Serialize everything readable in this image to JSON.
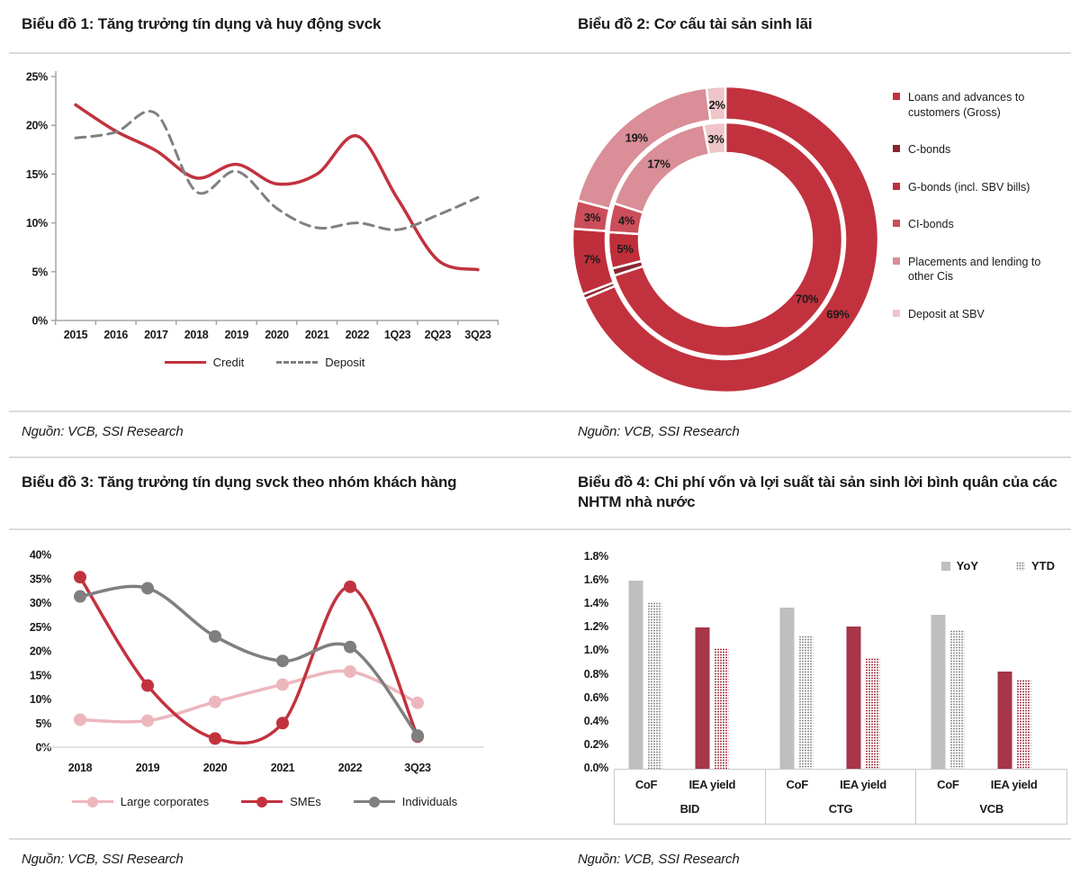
{
  "page": {
    "background": "#FFFFFF",
    "divider_color": "#DCDCDC",
    "accent_red": "#C2323E"
  },
  "panels": [
    {
      "title": "Biểu đồ 1: Tăng trưởng tín dụng và huy động svck",
      "source": "Nguồn: VCB, SSI Research"
    },
    {
      "title": "Biểu đồ 2: Cơ cấu tài sản sinh lãi",
      "source": "Nguồn: VCB, SSI Research"
    },
    {
      "title": "Biểu đồ 3: Tăng trưởng tín dụng svck theo nhóm khách hàng",
      "source": "Nguồn: VCB, SSI Research"
    },
    {
      "title": "Biểu đồ 4: Chi phí vốn và lợi suất tài sản sinh lời bình quân của các NHTM nhà nước",
      "source": "Nguồn: VCB, SSI Research"
    }
  ],
  "chart_data": [
    {
      "type": "line",
      "title": "Biểu đồ 1: Tăng trưởng tín dụng và huy động svck",
      "categories": [
        "2015",
        "2016",
        "2017",
        "2018",
        "2019",
        "2020",
        "2021",
        "2022",
        "1Q23",
        "2Q23",
        "3Q23"
      ],
      "ylim": [
        0,
        25
      ],
      "ytick_step": 5,
      "yformat": "%",
      "grid": false,
      "legend_position": "bottom",
      "series": [
        {
          "name": "Credit",
          "color": "#C2323E",
          "dash": false,
          "markers": false,
          "values": [
            22.1,
            19.4,
            17.4,
            14.6,
            16.0,
            14.0,
            15.0,
            18.9,
            12.5,
            6.2,
            5.2
          ]
        },
        {
          "name": "Deposit",
          "color": "#808080",
          "dash": true,
          "markers": false,
          "values": [
            18.7,
            19.3,
            21.2,
            13.2,
            15.3,
            11.5,
            9.5,
            10.0,
            9.3,
            10.8,
            12.6
          ]
        }
      ]
    },
    {
      "type": "donut",
      "title": "Biểu đồ 2: Cơ cấu tài sản sinh lãi",
      "rings": [
        "inner",
        "outer"
      ],
      "segments": [
        {
          "label": "Loans and advances to customers (Gross)",
          "color": "#C2323E",
          "inner_pct": 70,
          "outer_pct": 69,
          "inner_label": "70%",
          "outer_label": "69%"
        },
        {
          "label": "C-bonds",
          "color": "#8C2530",
          "inner_pct": 1,
          "outer_pct": 0.5,
          "inner_label": "",
          "outer_label": ""
        },
        {
          "label": "G-bonds (incl. SBV bills)",
          "color": "#BE2F3B",
          "inner_pct": 5,
          "outer_pct": 7,
          "inner_label": "5%",
          "outer_label": "7%"
        },
        {
          "label": "CI-bonds",
          "color": "#CB4E5A",
          "inner_pct": 4,
          "outer_pct": 3,
          "inner_label": "4%",
          "outer_label": "3%"
        },
        {
          "label": "Placements and lending to other Cis",
          "color": "#D98E98",
          "inner_pct": 17,
          "outer_pct": 19,
          "inner_label": "17%",
          "outer_label": "19%"
        },
        {
          "label": "Deposit at SBV",
          "color": "#EFC5CA",
          "inner_pct": 3,
          "outer_pct": 2,
          "inner_label": "3%",
          "outer_label": "2%"
        }
      ]
    },
    {
      "type": "line",
      "title": "Biểu đồ 3: Tăng trưởng tín dụng svck theo nhóm khách hàng",
      "categories": [
        "2018",
        "2019",
        "2020",
        "2021",
        "2022",
        "3Q23"
      ],
      "ylim": [
        0,
        40
      ],
      "ytick_step": 5,
      "yformat": "%",
      "grid": false,
      "legend_position": "bottom",
      "series": [
        {
          "name": "Large corporates",
          "color": "#EDB6BD",
          "dash": false,
          "markers": true,
          "values": [
            5.7,
            5.5,
            9.4,
            13.0,
            15.7,
            9.2
          ]
        },
        {
          "name": "SMEs",
          "color": "#C2323E",
          "dash": false,
          "markers": true,
          "values": [
            35.3,
            12.8,
            1.8,
            5.0,
            33.3,
            2.2
          ]
        },
        {
          "name": "Individuals",
          "color": "#7F7F7F",
          "dash": false,
          "markers": true,
          "values": [
            31.3,
            33.0,
            23.0,
            17.9,
            20.8,
            2.4
          ]
        }
      ]
    },
    {
      "type": "bar",
      "title": "Biểu đồ 4: Chi phí vốn và lợi suất tài sản sinh lời bình quân của các NHTM nhà nước",
      "ylim": [
        0,
        1.8
      ],
      "ytick_step": 0.2,
      "ytick_decimals": 1,
      "yformat": "%",
      "grid": false,
      "legend_position": "top-right",
      "legend": [
        {
          "name": "YoY",
          "fill": "solid"
        },
        {
          "name": "YTD",
          "fill": "dotted"
        }
      ],
      "subgroup_colors": {
        "CoF": "#BFBFBF",
        "IEA yield": "#A63648"
      },
      "dot_colors": {
        "CoF": "#8F8F8F",
        "IEA yield": "#A63648"
      },
      "groups": [
        {
          "label": "BID",
          "bars": [
            {
              "subgroup": "CoF",
              "YoY": 1.6,
              "YTD": 1.42
            },
            {
              "subgroup": "IEA yield",
              "YoY": 1.2,
              "YTD": 1.03
            }
          ]
        },
        {
          "label": "CTG",
          "bars": [
            {
              "subgroup": "CoF",
              "YoY": 1.37,
              "YTD": 1.13
            },
            {
              "subgroup": "IEA yield",
              "YoY": 1.21,
              "YTD": 0.94
            }
          ]
        },
        {
          "label": "VCB",
          "bars": [
            {
              "subgroup": "CoF",
              "YoY": 1.31,
              "YTD": 1.18
            },
            {
              "subgroup": "IEA yield",
              "YoY": 0.83,
              "YTD": 0.76
            }
          ]
        }
      ]
    }
  ]
}
